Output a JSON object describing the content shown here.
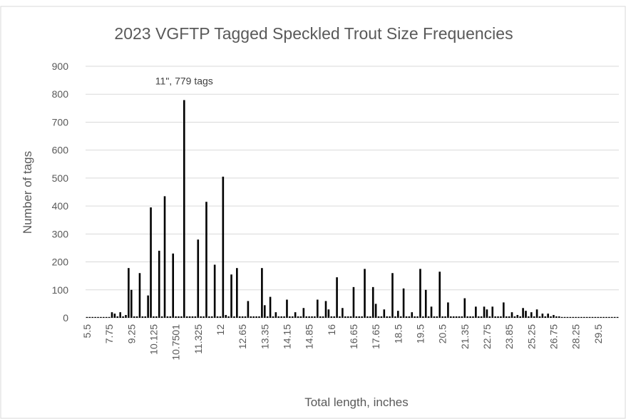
{
  "chart_data": {
    "type": "bar",
    "title": "2023 VGFTP Tagged Speckled Trout Size Frequencies",
    "xlabel": "Total length, inches",
    "ylabel": "Number of tags",
    "annotation": "11\", 779 tags",
    "color": "#000000",
    "grid": true,
    "ylim": [
      0,
      900
    ],
    "yticks": [
      0,
      100,
      200,
      300,
      400,
      500,
      600,
      700,
      800,
      900
    ],
    "categories": [
      "5.5",
      null,
      null,
      null,
      null,
      null,
      null,
      null,
      "7.75",
      null,
      null,
      null,
      null,
      null,
      null,
      null,
      "9.25",
      null,
      null,
      null,
      null,
      null,
      null,
      null,
      "10.125",
      null,
      null,
      null,
      null,
      null,
      null,
      null,
      "10.7501",
      null,
      null,
      null,
      null,
      null,
      null,
      null,
      "11.325",
      null,
      null,
      null,
      null,
      null,
      null,
      null,
      "12",
      null,
      null,
      null,
      null,
      null,
      null,
      null,
      "12.65",
      null,
      null,
      null,
      null,
      null,
      null,
      null,
      "13.35",
      null,
      null,
      null,
      null,
      null,
      null,
      null,
      "14.15",
      null,
      null,
      null,
      null,
      null,
      null,
      null,
      "14.85",
      null,
      null,
      null,
      null,
      null,
      null,
      null,
      "16",
      null,
      null,
      null,
      null,
      null,
      null,
      null,
      "16.65",
      null,
      null,
      null,
      null,
      null,
      null,
      null,
      "17.65",
      null,
      null,
      null,
      null,
      null,
      null,
      null,
      "18.5",
      null,
      null,
      null,
      null,
      null,
      null,
      null,
      "19.5",
      null,
      null,
      null,
      null,
      null,
      null,
      null,
      "20.5",
      null,
      null,
      null,
      null,
      null,
      null,
      null,
      "21.35",
      null,
      null,
      null,
      null,
      null,
      null,
      null,
      "22.75",
      null,
      null,
      null,
      null,
      null,
      null,
      null,
      "23.85",
      null,
      null,
      null,
      null,
      null,
      null,
      null,
      "25.25",
      null,
      null,
      null,
      null,
      null,
      null,
      null,
      "26.75",
      null,
      null,
      null,
      null,
      null,
      null,
      null,
      "28.25",
      null,
      null,
      null,
      null,
      null,
      null,
      null,
      "29.5",
      null,
      null,
      null,
      null,
      null,
      null,
      null
    ],
    "values": [
      3,
      3,
      3,
      3,
      3,
      3,
      3,
      3,
      3,
      20,
      15,
      5,
      20,
      5,
      10,
      178,
      100,
      5,
      5,
      160,
      5,
      5,
      80,
      395,
      5,
      5,
      240,
      5,
      435,
      5,
      5,
      230,
      5,
      5,
      5,
      779,
      5,
      5,
      5,
      5,
      280,
      5,
      5,
      415,
      5,
      5,
      190,
      5,
      5,
      505,
      10,
      5,
      155,
      5,
      178,
      5,
      5,
      5,
      60,
      5,
      5,
      5,
      5,
      178,
      45,
      5,
      75,
      5,
      20,
      5,
      5,
      5,
      65,
      5,
      5,
      20,
      5,
      5,
      35,
      5,
      5,
      5,
      5,
      65,
      5,
      5,
      60,
      30,
      5,
      5,
      145,
      5,
      35,
      5,
      5,
      5,
      110,
      5,
      5,
      5,
      175,
      5,
      5,
      110,
      50,
      5,
      5,
      30,
      5,
      5,
      160,
      5,
      25,
      5,
      105,
      5,
      5,
      20,
      5,
      5,
      175,
      5,
      100,
      5,
      40,
      5,
      5,
      165,
      5,
      5,
      55,
      5,
      5,
      5,
      5,
      5,
      70,
      5,
      5,
      5,
      40,
      5,
      5,
      40,
      30,
      5,
      40,
      5,
      5,
      5,
      55,
      5,
      5,
      20,
      5,
      10,
      5,
      35,
      25,
      5,
      20,
      5,
      30,
      5,
      15,
      5,
      15,
      5,
      10,
      5,
      5,
      3,
      3,
      3,
      3,
      3,
      3,
      3,
      3,
      3,
      3,
      3,
      3,
      3,
      3,
      3,
      3,
      3,
      3,
      3,
      3,
      3
    ]
  }
}
